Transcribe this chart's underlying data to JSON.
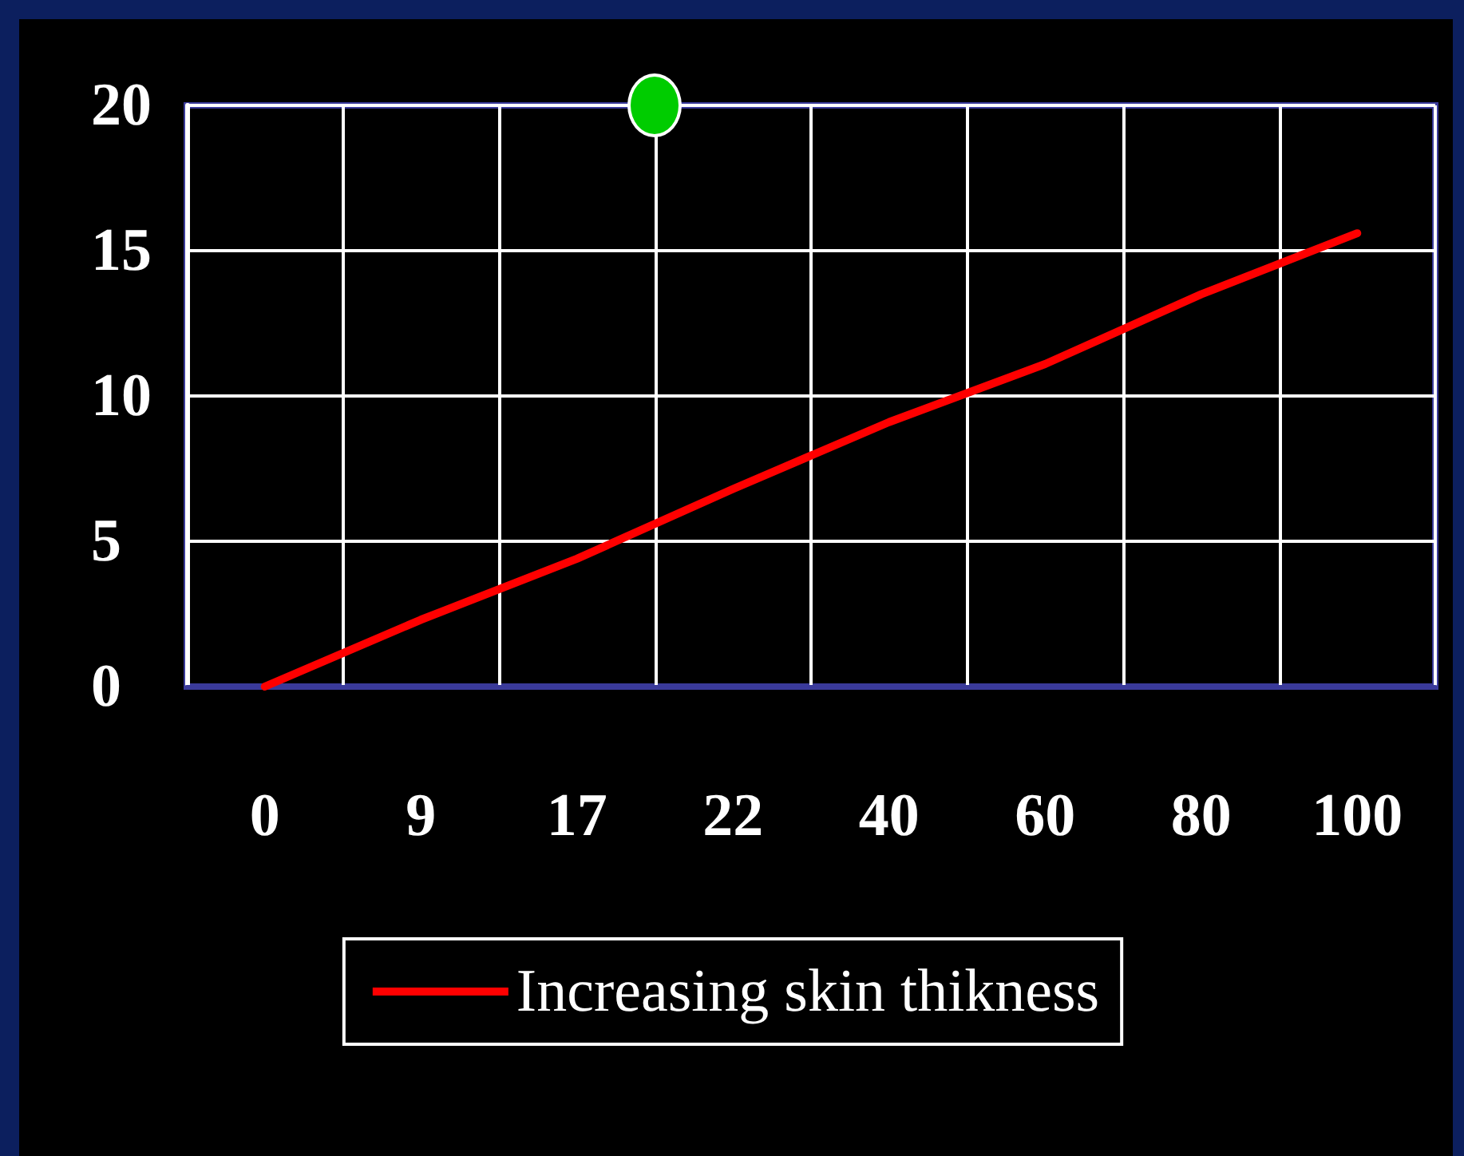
{
  "chart_data": {
    "type": "line",
    "categories": [
      "0",
      "9",
      "17",
      "22",
      "40",
      "60",
      "80",
      "100"
    ],
    "series": [
      {
        "name": "Increasing skin thikness",
        "color": "#ff0000",
        "values": [
          0,
          2.3,
          4.4,
          6.8,
          9.1,
          11.1,
          13.5,
          15.6
        ]
      }
    ],
    "ylim": [
      0,
      20
    ],
    "yticks": [
      0,
      5,
      10,
      15,
      20
    ],
    "grid": true,
    "legend": "bottom",
    "marker": "none"
  }
}
